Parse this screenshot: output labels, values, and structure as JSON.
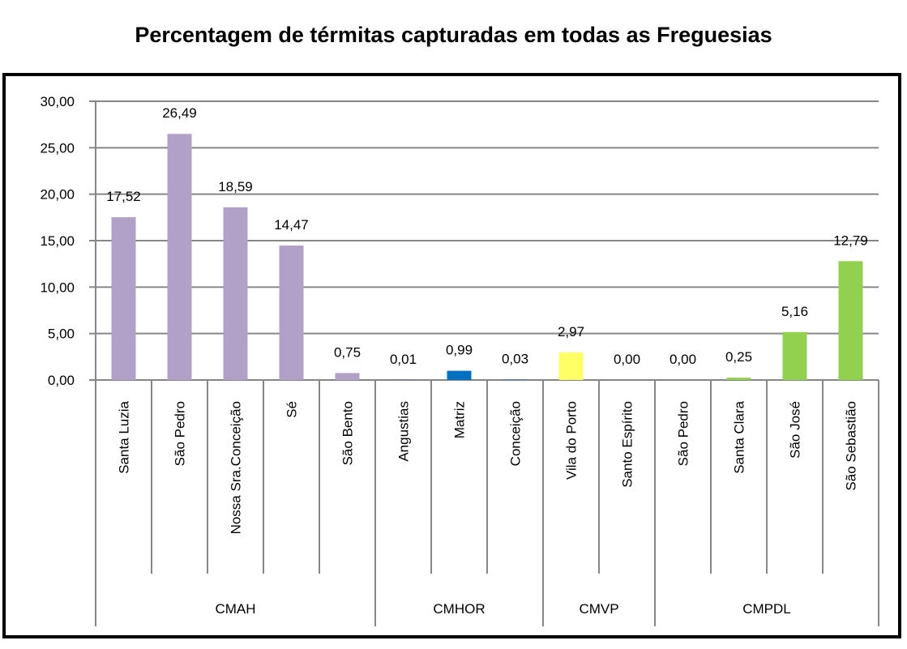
{
  "chart_data": {
    "type": "bar",
    "title": "Percentagem de térmitas capturadas em todas as Freguesias",
    "xlabel": "",
    "ylabel": "",
    "ylim": [
      0,
      30
    ],
    "yticks": [
      "0,00",
      "5,00",
      "10,00",
      "15,00",
      "20,00",
      "25,00",
      "30,00"
    ],
    "grid": true,
    "legend": "none",
    "categories": [
      "Santa Luzia",
      "São Pedro",
      "Nossa Sra.Conceição",
      "Sé",
      "São Bento",
      "Angustias",
      "Matriz",
      "Conceição",
      "Vila do Porto",
      "Santo Espírito",
      "São Pedro",
      "Santa Clara",
      "São José",
      "São Sebastião"
    ],
    "values": [
      17.52,
      26.49,
      18.59,
      14.47,
      0.75,
      0.01,
      0.99,
      0.03,
      2.97,
      0.0,
      0.0,
      0.25,
      5.16,
      12.79
    ],
    "value_labels": [
      "17,52",
      "26,49",
      "18,59",
      "14,47",
      "0,75",
      "0,01",
      "0,99",
      "0,03",
      "2,97",
      "0,00",
      "0,00",
      "0,25",
      "5,16",
      "12,79"
    ],
    "groups": [
      {
        "name": "CMAH",
        "count": 5,
        "color": "#b1a0c7"
      },
      {
        "name": "CMHOR",
        "count": 3,
        "color": "#0070c0"
      },
      {
        "name": "CMVP",
        "count": 2,
        "color": "#ffff66"
      },
      {
        "name": "CMPDL",
        "count": 4,
        "color": "#92d050"
      }
    ]
  }
}
